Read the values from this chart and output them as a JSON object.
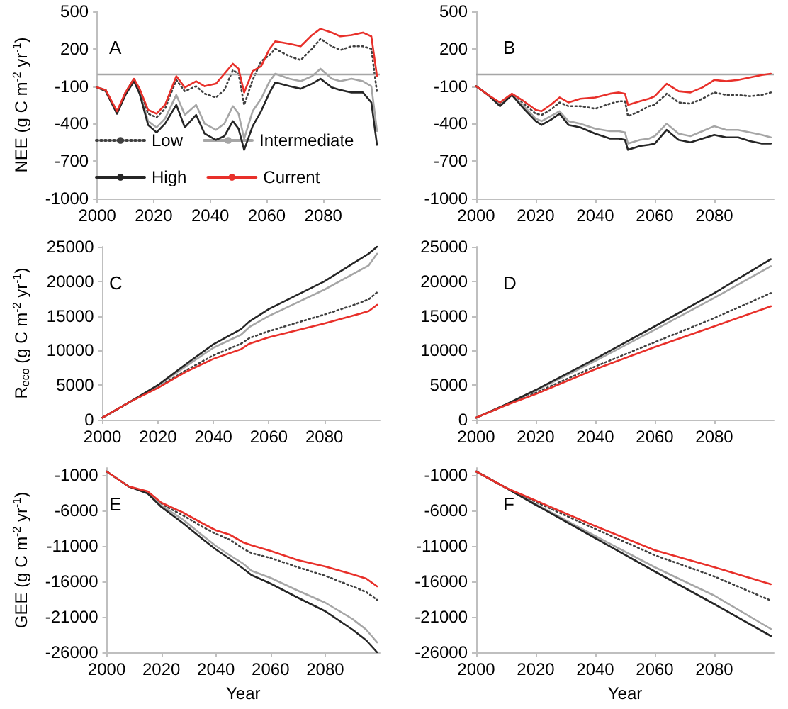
{
  "chart_data": [
    {
      "type": "line",
      "title": "A",
      "ylabel": "NEE (g C m$^{-2}$ yr$^{-1}$)",
      "xlim": [
        2000,
        2100
      ],
      "xticks": [
        2000,
        2020,
        2040,
        2060,
        2080
      ],
      "ylim": [
        -1000,
        500
      ],
      "yticks": [
        -1000,
        -700,
        -400,
        -100,
        200,
        500
      ],
      "grid": false,
      "marker": "none",
      "legend": "bottom left",
      "ref_lines": [
        {
          "axis": "y",
          "value": 0,
          "color": "#a6a6a6"
        }
      ],
      "x": [
        2000,
        2003,
        2007,
        2010,
        2013,
        2015,
        2018,
        2021,
        2024,
        2028,
        2031,
        2035,
        2038,
        2042,
        2045,
        2048,
        2050,
        2052,
        2055,
        2058,
        2061,
        2063,
        2068,
        2072,
        2076,
        2079,
        2083,
        2086,
        2090,
        2094,
        2097,
        2099
      ],
      "series": [
        {
          "name": "Low",
          "color": "#404040",
          "line_style": "dotted",
          "values": [
            -110,
            -130,
            -310,
            -150,
            -40,
            -130,
            -320,
            -350,
            -280,
            -50,
            -140,
            -100,
            -160,
            -190,
            -130,
            30,
            0,
            -250,
            -50,
            100,
            150,
            200,
            140,
            110,
            200,
            280,
            220,
            190,
            220,
            220,
            200,
            -150
          ]
        },
        {
          "name": "Intermediate",
          "color": "#a6a6a6",
          "line_style": "solid",
          "values": [
            -110,
            -130,
            -320,
            -160,
            -50,
            -150,
            -380,
            -430,
            -360,
            -170,
            -330,
            -250,
            -400,
            -450,
            -400,
            -260,
            -320,
            -520,
            -300,
            -200,
            -60,
            0,
            -40,
            -60,
            -20,
            40,
            -40,
            -60,
            -40,
            -60,
            -100,
            -460
          ]
        },
        {
          "name": "High",
          "color": "#262626",
          "line_style": "solid",
          "values": [
            -110,
            -140,
            -320,
            -170,
            -60,
            -160,
            -410,
            -470,
            -400,
            -250,
            -430,
            -330,
            -480,
            -530,
            -500,
            -380,
            -440,
            -610,
            -420,
            -300,
            -150,
            -70,
            -100,
            -120,
            -80,
            -40,
            -110,
            -130,
            -150,
            -150,
            -230,
            -570
          ]
        },
        {
          "name": "Current",
          "color": "#e8302a",
          "line_style": "solid",
          "values": [
            -110,
            -130,
            -300,
            -150,
            -40,
            -120,
            -290,
            -320,
            -250,
            -20,
            -110,
            -60,
            -100,
            -80,
            0,
            80,
            40,
            -150,
            20,
            60,
            200,
            260,
            240,
            220,
            310,
            360,
            330,
            300,
            310,
            330,
            300,
            -20
          ]
        }
      ]
    },
    {
      "type": "line",
      "title": "B",
      "xlim": [
        2000,
        2100
      ],
      "xticks": [
        2000,
        2020,
        2040,
        2060,
        2080
      ],
      "ylim": [
        -1000,
        500
      ],
      "yticks": [
        -1000,
        -700,
        -400,
        -100,
        200,
        500
      ],
      "grid": false,
      "marker": "none",
      "ref_lines": [
        {
          "axis": "y",
          "value": 0,
          "color": "#a6a6a6"
        }
      ],
      "x": [
        2000,
        2004,
        2008,
        2012,
        2016,
        2020,
        2022,
        2025,
        2028,
        2031,
        2035,
        2040,
        2045,
        2048,
        2050,
        2051,
        2055,
        2058,
        2060,
        2064,
        2068,
        2072,
        2076,
        2080,
        2084,
        2088,
        2092,
        2096,
        2099
      ],
      "series": [
        {
          "color": "#404040",
          "line_style": "dotted",
          "values": [
            -100,
            -170,
            -240,
            -170,
            -240,
            -320,
            -330,
            -290,
            -230,
            -260,
            -260,
            -280,
            -240,
            -220,
            -220,
            -340,
            -300,
            -260,
            -250,
            -160,
            -230,
            -240,
            -200,
            -150,
            -170,
            -170,
            -180,
            -170,
            -150
          ]
        },
        {
          "color": "#a6a6a6",
          "line_style": "solid",
          "values": [
            -100,
            -170,
            -250,
            -170,
            -260,
            -360,
            -380,
            -340,
            -300,
            -380,
            -400,
            -440,
            -460,
            -460,
            -470,
            -560,
            -530,
            -520,
            -500,
            -400,
            -480,
            -500,
            -460,
            -420,
            -450,
            -450,
            -470,
            -490,
            -510
          ]
        },
        {
          "color": "#262626",
          "line_style": "solid",
          "values": [
            -100,
            -170,
            -260,
            -170,
            -280,
            -380,
            -410,
            -370,
            -320,
            -410,
            -430,
            -480,
            -520,
            -520,
            -530,
            -610,
            -580,
            -570,
            -560,
            -450,
            -530,
            -550,
            -520,
            -490,
            -510,
            -510,
            -540,
            -560,
            -560
          ]
        },
        {
          "color": "#e8302a",
          "line_style": "solid",
          "values": [
            -100,
            -170,
            -230,
            -160,
            -220,
            -290,
            -300,
            -250,
            -190,
            -230,
            -200,
            -190,
            -160,
            -150,
            -160,
            -250,
            -220,
            -200,
            -180,
            -80,
            -140,
            -150,
            -110,
            -50,
            -60,
            -50,
            -30,
            -10,
            0
          ]
        }
      ]
    },
    {
      "type": "line",
      "title": "C",
      "ylabel": "R$_{eco}$ (g C m$^{-2}$ yr$^{-1}$)",
      "xlim": [
        2000,
        2100
      ],
      "xticks": [
        2000,
        2020,
        2040,
        2060,
        2080
      ],
      "ylim": [
        0,
        25000
      ],
      "yticks": [
        0,
        5000,
        10000,
        15000,
        20000,
        25000
      ],
      "grid": false,
      "marker": "none",
      "x": [
        2000,
        2010,
        2020,
        2030,
        2040,
        2050,
        2053,
        2060,
        2070,
        2080,
        2090,
        2096,
        2099
      ],
      "series": [
        {
          "color": "#404040",
          "line_style": "dotted",
          "values": [
            300,
            2600,
            4700,
            7100,
            9300,
            11000,
            11800,
            12800,
            14000,
            15200,
            16500,
            17400,
            18400
          ]
        },
        {
          "color": "#a6a6a6",
          "line_style": "solid",
          "values": [
            300,
            2600,
            4900,
            7700,
            10400,
            12300,
            13400,
            15000,
            16900,
            18800,
            21000,
            22300,
            24000
          ]
        },
        {
          "color": "#262626",
          "line_style": "solid",
          "values": [
            300,
            2600,
            5000,
            8000,
            10900,
            13100,
            14200,
            16000,
            18000,
            20000,
            22500,
            24000,
            25000
          ]
        },
        {
          "color": "#e8302a",
          "line_style": "solid",
          "values": [
            300,
            2600,
            4600,
            6900,
            8800,
            10200,
            11000,
            11900,
            12900,
            13900,
            15000,
            15700,
            16600
          ]
        }
      ]
    },
    {
      "type": "line",
      "title": "D",
      "xlim": [
        2000,
        2100
      ],
      "xticks": [
        2000,
        2020,
        2040,
        2060,
        2080
      ],
      "ylim": [
        0,
        25000
      ],
      "yticks": [
        0,
        5000,
        10000,
        15000,
        20000,
        25000
      ],
      "grid": false,
      "marker": "none",
      "x": [
        2000,
        2010,
        2020,
        2040,
        2060,
        2080,
        2099
      ],
      "series": [
        {
          "color": "#404040",
          "line_style": "dotted",
          "values": [
            300,
            2100,
            3900,
            7700,
            11200,
            14700,
            18300
          ]
        },
        {
          "color": "#a6a6a6",
          "line_style": "solid",
          "values": [
            300,
            2200,
            4200,
            8500,
            13000,
            17600,
            22200
          ]
        },
        {
          "color": "#262626",
          "line_style": "solid",
          "values": [
            300,
            2200,
            4300,
            8800,
            13500,
            18300,
            23200
          ]
        },
        {
          "color": "#e8302a",
          "line_style": "solid",
          "values": [
            300,
            2100,
            3700,
            7300,
            10500,
            13500,
            16400
          ]
        }
      ]
    },
    {
      "type": "line",
      "title": "E",
      "xlabel": "Year",
      "ylabel": "GEE (g C m$^{-2}$ yr$^{-1}$)",
      "xlim": [
        2000,
        2100
      ],
      "xticks": [
        2000,
        2020,
        2040,
        2060,
        2080
      ],
      "ylim": [
        -26000,
        0
      ],
      "yticks": [
        -26000,
        -21000,
        -16000,
        -11000,
        -6000,
        -1000
      ],
      "grid": false,
      "marker": "none",
      "x": [
        2000,
        2008,
        2015,
        2020,
        2028,
        2035,
        2040,
        2045,
        2050,
        2053,
        2060,
        2070,
        2080,
        2090,
        2095,
        2099
      ],
      "series": [
        {
          "color": "#404040",
          "line_style": "dotted",
          "values": [
            -500,
            -2600,
            -3400,
            -5100,
            -6700,
            -8300,
            -9300,
            -10100,
            -11400,
            -12000,
            -12700,
            -14000,
            -15200,
            -16700,
            -17500,
            -18600
          ]
        },
        {
          "color": "#a6a6a6",
          "line_style": "solid",
          "values": [
            -500,
            -2600,
            -3500,
            -5300,
            -7300,
            -9500,
            -11000,
            -12300,
            -13500,
            -14500,
            -15500,
            -17300,
            -19000,
            -21300,
            -22800,
            -24600
          ]
        },
        {
          "color": "#262626",
          "line_style": "solid",
          "values": [
            -500,
            -2600,
            -3600,
            -5500,
            -7800,
            -10000,
            -11500,
            -12800,
            -14200,
            -15100,
            -16300,
            -18300,
            -20200,
            -22800,
            -24300,
            -26000
          ]
        },
        {
          "color": "#e8302a",
          "line_style": "solid",
          "values": [
            -500,
            -2600,
            -3300,
            -4900,
            -6300,
            -7800,
            -8800,
            -9400,
            -10500,
            -10900,
            -11700,
            -13000,
            -13900,
            -15000,
            -15600,
            -16700
          ]
        }
      ]
    },
    {
      "type": "line",
      "title": "F",
      "xlabel": "Year",
      "xlim": [
        2000,
        2100
      ],
      "xticks": [
        2000,
        2020,
        2040,
        2060,
        2080
      ],
      "ylim": [
        -26000,
        0
      ],
      "yticks": [
        -26000,
        -21000,
        -16000,
        -11000,
        -6000,
        -1000
      ],
      "grid": false,
      "marker": "none",
      "x": [
        2000,
        2010,
        2020,
        2040,
        2060,
        2080,
        2099
      ],
      "series": [
        {
          "color": "#404040",
          "line_style": "dotted",
          "values": [
            -500,
            -2800,
            -4800,
            -8600,
            -12300,
            -15300,
            -18700
          ]
        },
        {
          "color": "#a6a6a6",
          "line_style": "solid",
          "values": [
            -500,
            -2800,
            -5100,
            -9600,
            -14000,
            -18000,
            -22700
          ]
        },
        {
          "color": "#262626",
          "line_style": "solid",
          "values": [
            -500,
            -2800,
            -5200,
            -9900,
            -14600,
            -19200,
            -23700
          ]
        },
        {
          "color": "#e8302a",
          "line_style": "solid",
          "values": [
            -500,
            -2800,
            -4600,
            -8200,
            -11600,
            -14000,
            -16400
          ]
        }
      ]
    }
  ]
}
